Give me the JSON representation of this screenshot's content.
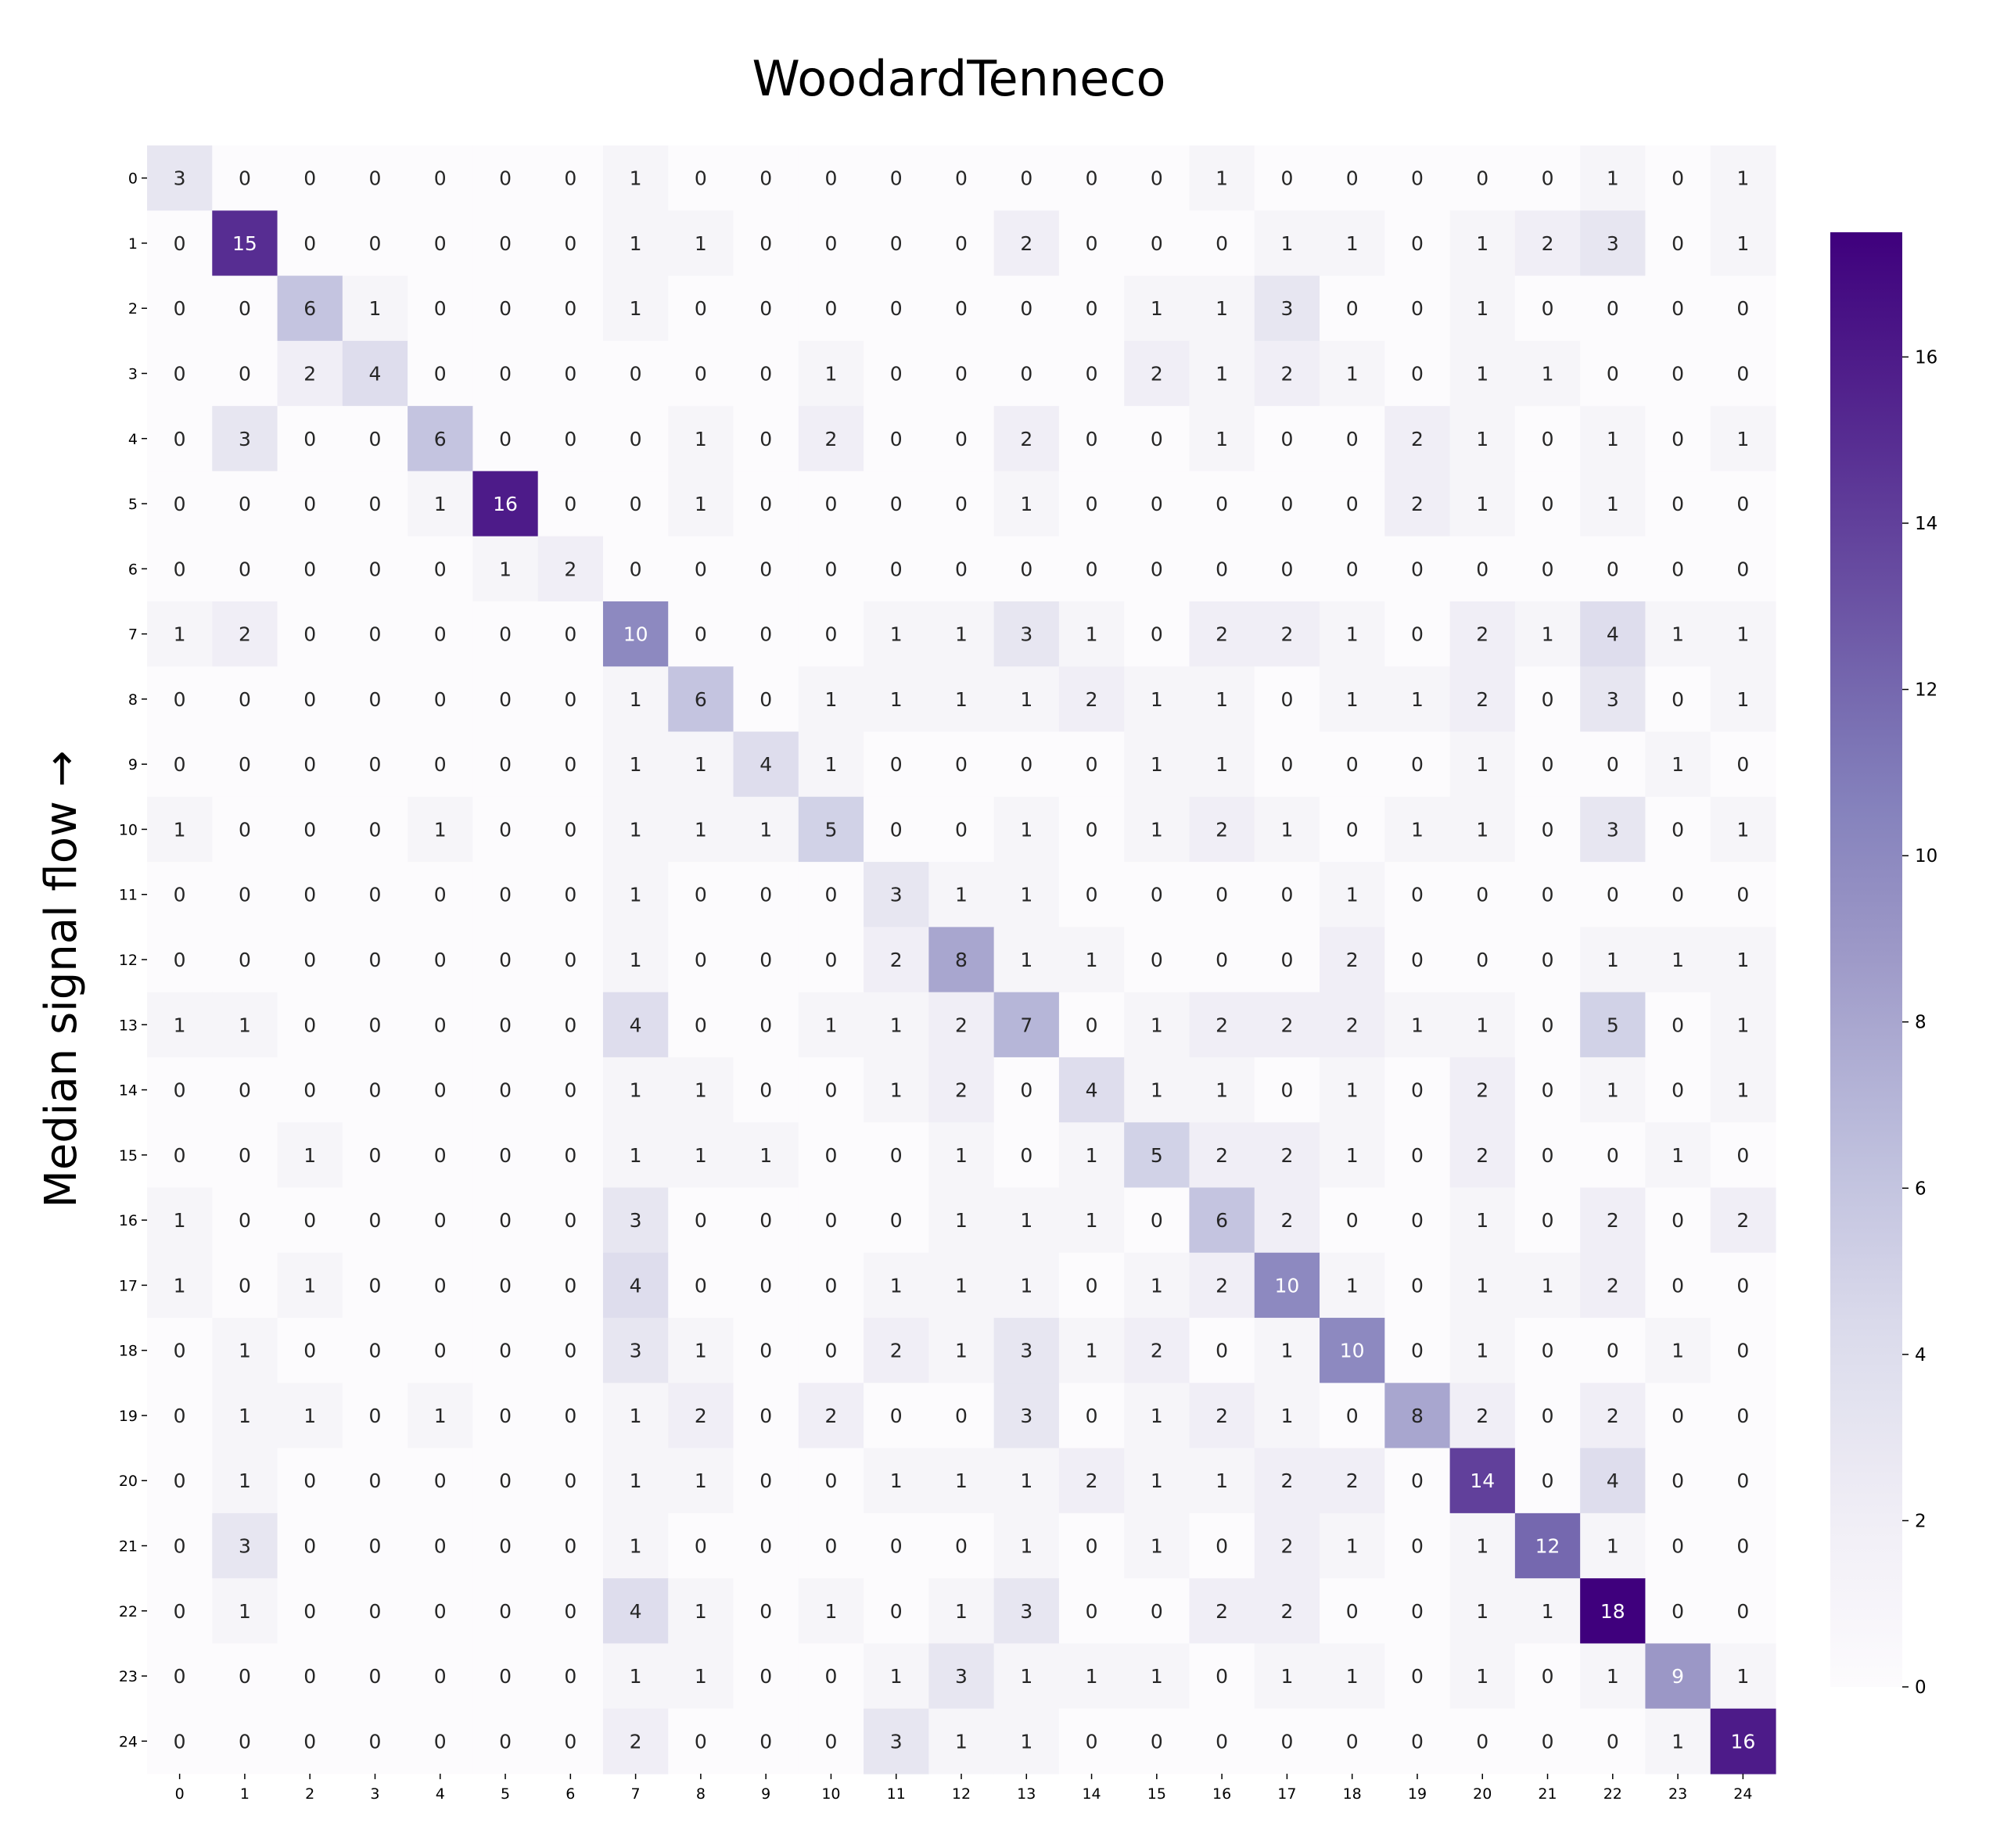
{
  "chart_data": {
    "type": "heatmap",
    "title": "WoodardTenneco",
    "xlabel": "",
    "ylabel": "Median signal flow →",
    "x_categories": [
      "0",
      "1",
      "2",
      "3",
      "4",
      "5",
      "6",
      "7",
      "8",
      "9",
      "10",
      "11",
      "12",
      "13",
      "14",
      "15",
      "16",
      "17",
      "18",
      "19",
      "20",
      "21",
      "22",
      "23",
      "24"
    ],
    "y_categories": [
      "0",
      "1",
      "2",
      "3",
      "4",
      "5",
      "6",
      "7",
      "8",
      "9",
      "10",
      "11",
      "12",
      "13",
      "14",
      "15",
      "16",
      "17",
      "18",
      "19",
      "20",
      "21",
      "22",
      "23",
      "24"
    ],
    "values": [
      [
        3,
        0,
        0,
        0,
        0,
        0,
        0,
        1,
        0,
        0,
        0,
        0,
        0,
        0,
        0,
        0,
        1,
        0,
        0,
        0,
        0,
        0,
        1,
        0,
        1
      ],
      [
        0,
        15,
        0,
        0,
        0,
        0,
        0,
        1,
        1,
        0,
        0,
        0,
        0,
        2,
        0,
        0,
        0,
        1,
        1,
        0,
        1,
        2,
        3,
        0,
        1
      ],
      [
        0,
        0,
        6,
        1,
        0,
        0,
        0,
        1,
        0,
        0,
        0,
        0,
        0,
        0,
        0,
        1,
        1,
        3,
        0,
        0,
        1,
        0,
        0,
        0,
        0
      ],
      [
        0,
        0,
        2,
        4,
        0,
        0,
        0,
        0,
        0,
        0,
        1,
        0,
        0,
        0,
        0,
        2,
        1,
        2,
        1,
        0,
        1,
        1,
        0,
        0,
        0
      ],
      [
        0,
        3,
        0,
        0,
        6,
        0,
        0,
        0,
        1,
        0,
        2,
        0,
        0,
        2,
        0,
        0,
        1,
        0,
        0,
        2,
        1,
        0,
        1,
        0,
        1
      ],
      [
        0,
        0,
        0,
        0,
        1,
        16,
        0,
        0,
        1,
        0,
        0,
        0,
        0,
        1,
        0,
        0,
        0,
        0,
        0,
        2,
        1,
        0,
        1,
        0,
        0
      ],
      [
        0,
        0,
        0,
        0,
        0,
        1,
        2,
        0,
        0,
        0,
        0,
        0,
        0,
        0,
        0,
        0,
        0,
        0,
        0,
        0,
        0,
        0,
        0,
        0,
        0
      ],
      [
        1,
        2,
        0,
        0,
        0,
        0,
        0,
        10,
        0,
        0,
        0,
        1,
        1,
        3,
        1,
        0,
        2,
        2,
        1,
        0,
        2,
        1,
        4,
        1,
        1
      ],
      [
        0,
        0,
        0,
        0,
        0,
        0,
        0,
        1,
        6,
        0,
        1,
        1,
        1,
        1,
        2,
        1,
        1,
        0,
        1,
        1,
        2,
        0,
        3,
        0,
        1
      ],
      [
        0,
        0,
        0,
        0,
        0,
        0,
        0,
        1,
        1,
        4,
        1,
        0,
        0,
        0,
        0,
        1,
        1,
        0,
        0,
        0,
        1,
        0,
        0,
        1,
        0
      ],
      [
        1,
        0,
        0,
        0,
        1,
        0,
        0,
        1,
        1,
        1,
        5,
        0,
        0,
        1,
        0,
        1,
        2,
        1,
        0,
        1,
        1,
        0,
        3,
        0,
        1
      ],
      [
        0,
        0,
        0,
        0,
        0,
        0,
        0,
        1,
        0,
        0,
        0,
        3,
        1,
        1,
        0,
        0,
        0,
        0,
        1,
        0,
        0,
        0,
        0,
        0,
        0
      ],
      [
        0,
        0,
        0,
        0,
        0,
        0,
        0,
        1,
        0,
        0,
        0,
        2,
        8,
        1,
        1,
        0,
        0,
        0,
        2,
        0,
        0,
        0,
        1,
        1,
        1
      ],
      [
        1,
        1,
        0,
        0,
        0,
        0,
        0,
        4,
        0,
        0,
        1,
        1,
        2,
        7,
        0,
        1,
        2,
        2,
        2,
        1,
        1,
        0,
        5,
        0,
        1
      ],
      [
        0,
        0,
        0,
        0,
        0,
        0,
        0,
        1,
        1,
        0,
        0,
        1,
        2,
        0,
        4,
        1,
        1,
        0,
        1,
        0,
        2,
        0,
        1,
        0,
        1
      ],
      [
        0,
        0,
        1,
        0,
        0,
        0,
        0,
        1,
        1,
        1,
        0,
        0,
        1,
        0,
        1,
        5,
        2,
        2,
        1,
        0,
        2,
        0,
        0,
        1,
        0
      ],
      [
        1,
        0,
        0,
        0,
        0,
        0,
        0,
        3,
        0,
        0,
        0,
        0,
        1,
        1,
        1,
        0,
        6,
        2,
        0,
        0,
        1,
        0,
        2,
        0,
        2
      ],
      [
        1,
        0,
        1,
        0,
        0,
        0,
        0,
        4,
        0,
        0,
        0,
        1,
        1,
        1,
        0,
        1,
        2,
        10,
        1,
        0,
        1,
        1,
        2,
        0,
        0
      ],
      [
        0,
        1,
        0,
        0,
        0,
        0,
        0,
        3,
        1,
        0,
        0,
        2,
        1,
        3,
        1,
        2,
        0,
        1,
        10,
        0,
        1,
        0,
        0,
        1,
        0
      ],
      [
        0,
        1,
        1,
        0,
        1,
        0,
        0,
        1,
        2,
        0,
        2,
        0,
        0,
        3,
        0,
        1,
        2,
        1,
        0,
        8,
        2,
        0,
        2,
        0,
        0
      ],
      [
        0,
        1,
        0,
        0,
        0,
        0,
        0,
        1,
        1,
        0,
        0,
        1,
        1,
        1,
        2,
        1,
        1,
        2,
        2,
        0,
        14,
        0,
        4,
        0,
        0
      ],
      [
        0,
        3,
        0,
        0,
        0,
        0,
        0,
        1,
        0,
        0,
        0,
        0,
        0,
        1,
        0,
        1,
        0,
        2,
        1,
        0,
        1,
        12,
        1,
        0,
        0
      ],
      [
        0,
        1,
        0,
        0,
        0,
        0,
        0,
        4,
        1,
        0,
        1,
        0,
        1,
        3,
        0,
        0,
        2,
        2,
        0,
        0,
        1,
        1,
        18,
        0,
        0
      ],
      [
        0,
        0,
        0,
        0,
        0,
        0,
        0,
        1,
        1,
        0,
        0,
        1,
        3,
        1,
        1,
        1,
        0,
        1,
        1,
        0,
        1,
        0,
        1,
        9,
        1
      ],
      [
        0,
        0,
        0,
        0,
        0,
        0,
        0,
        2,
        0,
        0,
        0,
        3,
        1,
        1,
        0,
        0,
        0,
        0,
        0,
        0,
        0,
        0,
        0,
        1,
        16
      ]
    ],
    "colorbar": {
      "colormap": "Purples",
      "min": 0,
      "max": 17.5,
      "ticks": [
        0,
        2,
        4,
        6,
        8,
        10,
        12,
        14,
        16
      ]
    },
    "grid": false
  }
}
